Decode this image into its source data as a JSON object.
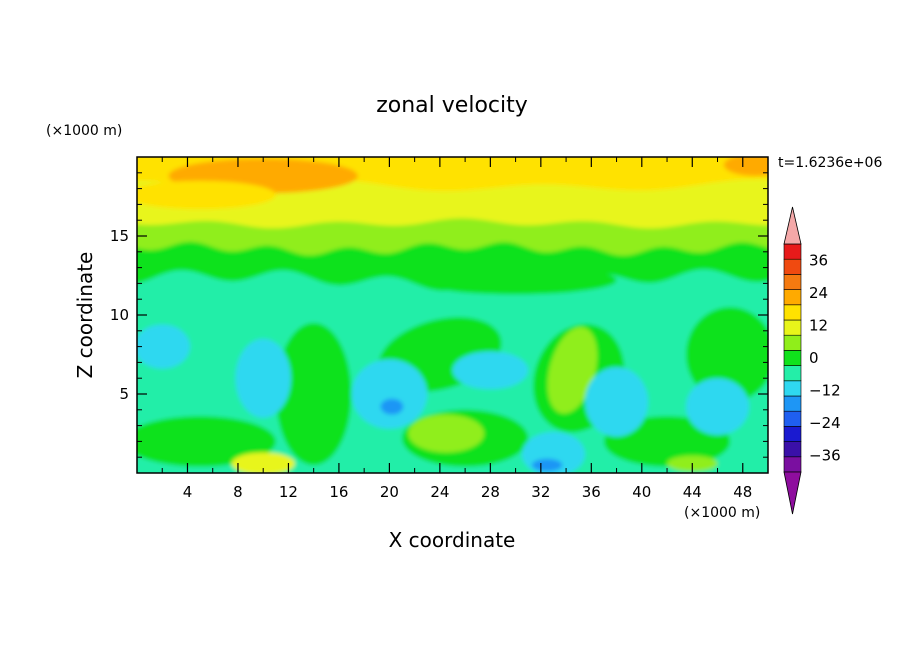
{
  "chart_data": {
    "type": "heatmap",
    "title": "zonal velocity",
    "xlabel": "X coordinate",
    "ylabel": "Z coordinate",
    "x_unit": "(×1000 m)",
    "y_unit": "(×1000 m)",
    "time_label": "t=1.6236e+06",
    "xlim": [
      0,
      50
    ],
    "ylim": [
      0,
      20
    ],
    "x_ticks": [
      4,
      8,
      12,
      16,
      20,
      24,
      28,
      32,
      36,
      40,
      44,
      48
    ],
    "y_ticks": [
      5,
      10,
      15
    ],
    "colorbar": {
      "levels": [
        -42,
        -36,
        -30,
        -24,
        -18,
        -12,
        -6,
        0,
        6,
        12,
        18,
        24,
        30,
        36,
        42
      ],
      "tick_labels": [
        "36",
        "24",
        "12",
        "0",
        "−12",
        "−24",
        "−36"
      ],
      "tick_values": [
        36,
        24,
        12,
        0,
        -12,
        -24,
        -36
      ],
      "colors": [
        "#7a0fa0",
        "#3a10a8",
        "#1a1ad0",
        "#1f5ff0",
        "#1e96f5",
        "#2fd8f0",
        "#24eea8",
        "#10e21c",
        "#90ee1a",
        "#e8f51a",
        "#ffe200",
        "#ffaa00",
        "#f57a10",
        "#f04a10",
        "#e81a1a"
      ],
      "under_color": "#8e0d9e",
      "over_color": "#f4a8a8"
    },
    "field_layers": [
      {
        "band": "16 to 20",
        "value_range": [
          6,
          30
        ]
      },
      {
        "band": "12 to 16",
        "value_range": [
          0,
          12
        ]
      },
      {
        "band": "0 to 12",
        "value_range": [
          -18,
          6
        ]
      }
    ]
  }
}
